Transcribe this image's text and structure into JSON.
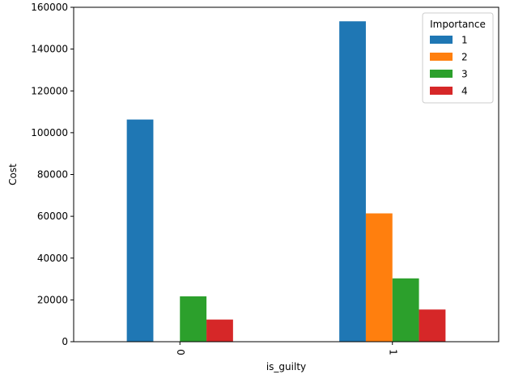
{
  "chart_data": {
    "type": "bar",
    "title": "",
    "xlabel": "is_guilty",
    "ylabel": "Cost",
    "categories": [
      "0",
      "1"
    ],
    "ylim": [
      0,
      160000
    ],
    "yticks": [
      0,
      20000,
      40000,
      60000,
      80000,
      100000,
      120000,
      140000,
      160000
    ],
    "ytick_labels": [
      "0",
      "20000",
      "40000",
      "60000",
      "80000",
      "100000",
      "120000",
      "140000",
      "160000"
    ],
    "grid": false,
    "legend": {
      "title": "Importance",
      "placement": "top-right"
    },
    "series": [
      {
        "name": "1",
        "color": "#1f77b4",
        "values": [
          106300,
          153300
        ]
      },
      {
        "name": "2",
        "color": "#ff7f0e",
        "values": [
          0,
          61400
        ]
      },
      {
        "name": "3",
        "color": "#2ca02c",
        "values": [
          21700,
          30300
        ]
      },
      {
        "name": "4",
        "color": "#d62728",
        "values": [
          10600,
          15400
        ]
      }
    ]
  }
}
